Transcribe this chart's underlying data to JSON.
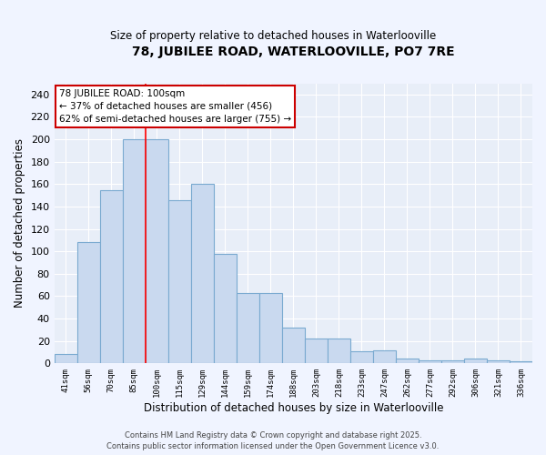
{
  "title": "78, JUBILEE ROAD, WATERLOOVILLE, PO7 7RE",
  "subtitle": "Size of property relative to detached houses in Waterlooville",
  "xlabel": "Distribution of detached houses by size in Waterlooville",
  "ylabel": "Number of detached properties",
  "categories": [
    "41sqm",
    "56sqm",
    "70sqm",
    "85sqm",
    "100sqm",
    "115sqm",
    "129sqm",
    "144sqm",
    "159sqm",
    "174sqm",
    "188sqm",
    "203sqm",
    "218sqm",
    "233sqm",
    "247sqm",
    "262sqm",
    "277sqm",
    "292sqm",
    "306sqm",
    "321sqm",
    "336sqm"
  ],
  "values": [
    8,
    108,
    155,
    200,
    200,
    146,
    160,
    98,
    63,
    63,
    32,
    22,
    22,
    11,
    12,
    4,
    3,
    3,
    4,
    3,
    2
  ],
  "bar_color": "#c9d9ef",
  "bar_edge_color": "#7aaad0",
  "red_line_x": 3.5,
  "annotation_title": "78 JUBILEE ROAD: 100sqm",
  "annotation_line1": "← 37% of detached houses are smaller (456)",
  "annotation_line2": "62% of semi-detached houses are larger (755) →",
  "annotation_box_color": "#ffffff",
  "annotation_box_edge": "#cc0000",
  "background_color": "#f0f4ff",
  "plot_bg_color": "#e8eef8",
  "grid_color": "#ffffff",
  "footer_line1": "Contains HM Land Registry data © Crown copyright and database right 2025.",
  "footer_line2": "Contains public sector information licensed under the Open Government Licence v3.0.",
  "ylim": [
    0,
    250
  ],
  "yticks": [
    0,
    20,
    40,
    60,
    80,
    100,
    120,
    140,
    160,
    180,
    200,
    220,
    240
  ]
}
